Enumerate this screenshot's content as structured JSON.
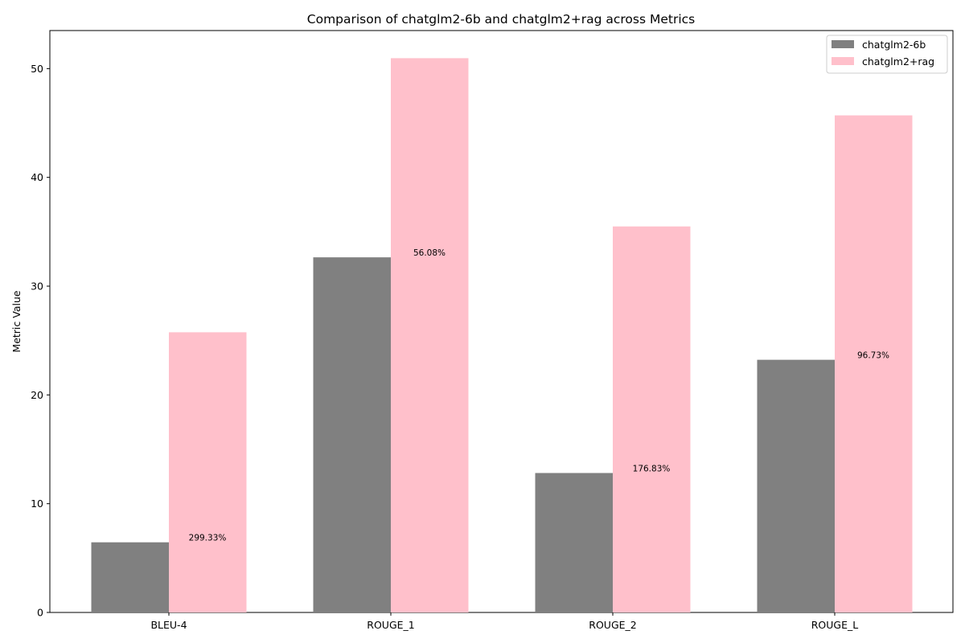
{
  "chart_data": {
    "type": "bar",
    "title": "Comparison of chatglm2-6b and chatglm2+rag across Metrics",
    "xlabel": "",
    "ylabel": "Metric Value",
    "categories": [
      "BLEU-4",
      "ROUGE_1",
      "ROUGE_2",
      "ROUGE_L"
    ],
    "series": [
      {
        "name": "chatglm2-6b",
        "color": "#808080",
        "values": [
          6.45,
          32.65,
          12.82,
          23.23
        ]
      },
      {
        "name": "chatglm2+rag",
        "color": "#ffc0cb",
        "values": [
          25.76,
          50.96,
          35.49,
          45.7
        ]
      }
    ],
    "annotations": [
      "299.33%",
      "56.08%",
      "176.83%",
      "96.73%"
    ],
    "ylim": [
      0,
      53.5
    ],
    "yticks": [
      0,
      10,
      20,
      30,
      40,
      50
    ],
    "grid": false,
    "legend_position": "top-right"
  }
}
